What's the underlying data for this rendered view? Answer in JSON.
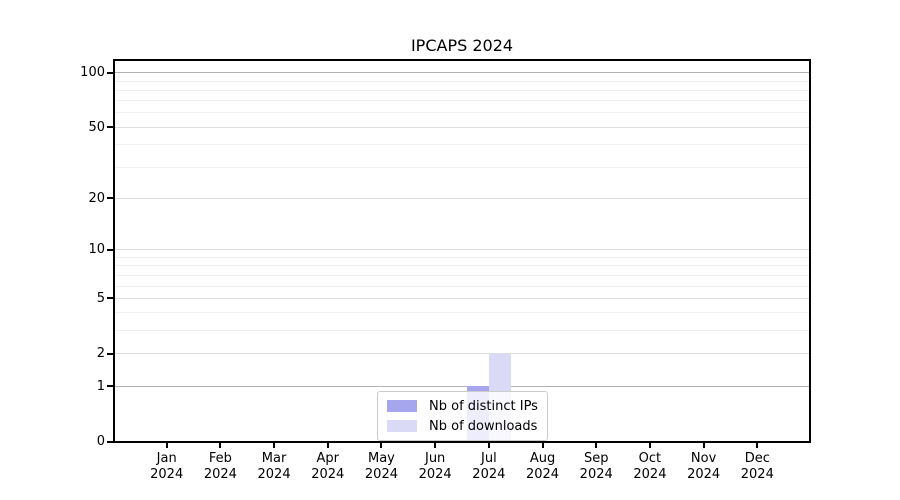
{
  "title": "IPCAPS 2024",
  "chart_data": {
    "type": "bar",
    "title": "IPCAPS 2024",
    "categories": [
      "Jan 2024",
      "Feb 2024",
      "Mar 2024",
      "Apr 2024",
      "May 2024",
      "Jun 2024",
      "Jul 2024",
      "Aug 2024",
      "Sep 2024",
      "Oct 2024",
      "Nov 2024",
      "Dec 2024"
    ],
    "series": [
      {
        "name": "Nb of distinct IPs",
        "color": "#a6a6ee",
        "values": [
          0,
          0,
          0,
          0,
          0,
          0,
          1,
          0,
          0,
          0,
          0,
          0
        ]
      },
      {
        "name": "Nb of downloads",
        "color": "#dadaf7",
        "values": [
          0,
          0,
          0,
          0,
          0,
          0,
          2,
          0,
          0,
          0,
          0,
          0
        ]
      }
    ],
    "xlabel": "",
    "ylabel": "",
    "y_scale": "log1p",
    "y_major_ticks": [
      0,
      1,
      2,
      5,
      10,
      20,
      50,
      100
    ],
    "y_minor_ticks": [
      3,
      4,
      6,
      7,
      8,
      9,
      30,
      40,
      60,
      70,
      80,
      90
    ],
    "emphasized_gridlines": [
      1,
      100
    ],
    "ylim": [
      0,
      117
    ],
    "grid": "horizontal",
    "legend_position": "lower-center"
  },
  "colors": {
    "spine": "#000000",
    "grid_major": "#dedede",
    "grid_major_emphasized": "#b3b3b3",
    "grid_minor": "#efefef",
    "legend_border": "#cccccc"
  }
}
